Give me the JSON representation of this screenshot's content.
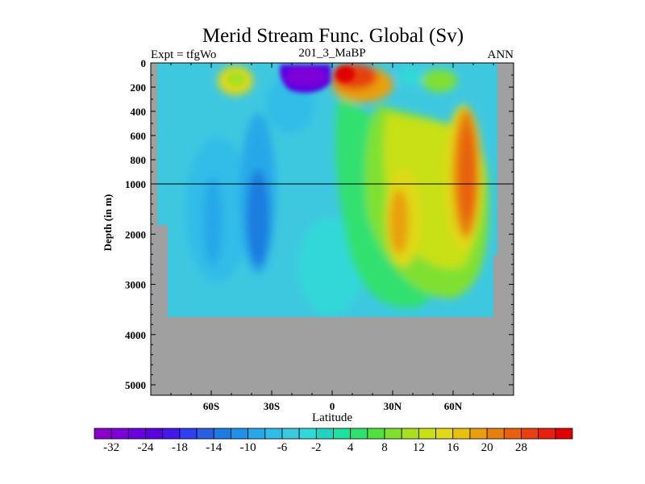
{
  "chart_data": {
    "type": "heatmap",
    "title": "Merid Stream Func. Global (Sv)",
    "left_label": "Expt = tfgWo",
    "center_label": "201_3_MaBP",
    "right_label": "ANN",
    "xlabel": "Latitude",
    "ylabel": "Depth (in m)",
    "x_range": [
      -90,
      90
    ],
    "x_ticks": [
      {
        "value": -60,
        "label": "60S"
      },
      {
        "value": -30,
        "label": "30S"
      },
      {
        "value": 0,
        "label": "0"
      },
      {
        "value": 30,
        "label": "30N"
      },
      {
        "value": 60,
        "label": "60N"
      }
    ],
    "y_ticks": [
      {
        "value": 0,
        "label": "0"
      },
      {
        "value": 200,
        "label": "200"
      },
      {
        "value": 400,
        "label": "400"
      },
      {
        "value": 600,
        "label": "600"
      },
      {
        "value": 800,
        "label": "800"
      },
      {
        "value": 1000,
        "label": "1000"
      },
      {
        "value": 2000,
        "label": "2000"
      },
      {
        "value": 3000,
        "label": "3000"
      },
      {
        "value": 4000,
        "label": "4000"
      },
      {
        "value": 5000,
        "label": "5000"
      }
    ],
    "y_scale_note": "upper 0-1000 m stretched, lower 1000-5000 m compressed; reference line at 1000 m",
    "colorbar_levels": [
      -36,
      -32,
      -28,
      -24,
      -20,
      -18,
      -16,
      -14,
      -12,
      -10,
      -8,
      -6,
      -4,
      -2,
      0,
      2,
      4,
      6,
      8,
      10,
      12,
      14,
      16,
      18,
      20,
      24,
      28,
      32
    ],
    "colorbar_labels": [
      "-32",
      "-24",
      "-18",
      "-14",
      "-10",
      "-6",
      "-2",
      "4",
      "8",
      "12",
      "16",
      "20",
      "28"
    ],
    "colors": [
      "#8a00c8",
      "#7d00d8",
      "#6a00dc",
      "#5a00e0",
      "#4418e8",
      "#3040f0",
      "#2a60e0",
      "#1e7be0",
      "#2090e8",
      "#28a8e8",
      "#30bce8",
      "#3ec8e0",
      "#30d8d8",
      "#20d4c0",
      "#20e0a0",
      "#30e070",
      "#50e040",
      "#80e030",
      "#a8e020",
      "#c8e018",
      "#e0d818",
      "#e8c010",
      "#e8a010",
      "#e88010",
      "#e86010",
      "#e84010",
      "#e82010",
      "#e00000"
    ],
    "land_color": "#a0a0a0",
    "features": [
      {
        "name": "southern-cell",
        "lat": -8,
        "depth": 50,
        "value": -34
      },
      {
        "name": "northern-surface-cell",
        "lat": 8,
        "depth": 80,
        "value": 30
      },
      {
        "name": "north-atlantic-deep",
        "lat": 64,
        "depth": 700,
        "value": 22
      },
      {
        "name": "deep-30N-cell",
        "lat": 30,
        "depth": 1800,
        "value": 17
      },
      {
        "name": "deep-30S-cell",
        "lat": -33,
        "depth": 1900,
        "value": -14
      }
    ]
  }
}
